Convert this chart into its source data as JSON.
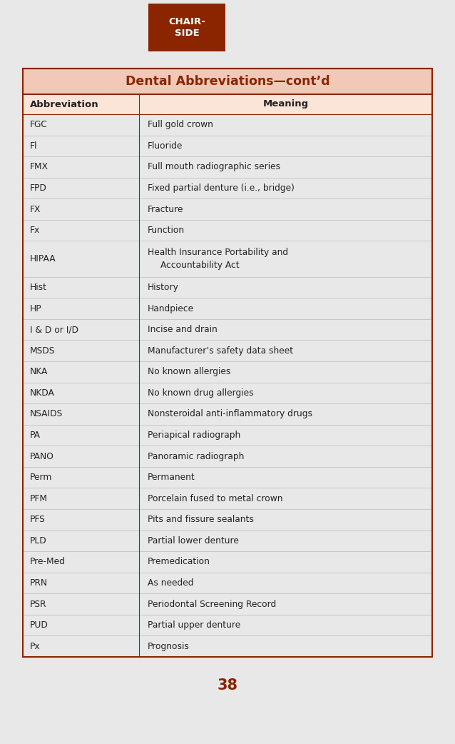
{
  "title": "Dental Abbreviations—cont’d",
  "title_color": "#8B2500",
  "title_bg_color": "#F2C9B8",
  "header_col1": "Abbreviation",
  "header_col2": "Meaning",
  "rows": [
    [
      "FGC",
      "Full gold crown"
    ],
    [
      "Fl",
      "Fluoride"
    ],
    [
      "FMX",
      "Full mouth radiographic series"
    ],
    [
      "FPD",
      "Fixed partial denture (i.e., bridge)"
    ],
    [
      "FX",
      "Fracture"
    ],
    [
      "Fx",
      "Function"
    ],
    [
      "HIPAA",
      "Health Insurance Portability and\n  Accountability Act"
    ],
    [
      "Hist",
      "History"
    ],
    [
      "HP",
      "Handpiece"
    ],
    [
      "I & D or I/D",
      "Incise and drain"
    ],
    [
      "MSDS",
      "Manufacturer’s safety data sheet"
    ],
    [
      "NKA",
      "No known allergies"
    ],
    [
      "NKDA",
      "No known drug allergies"
    ],
    [
      "NSAIDS",
      "Nonsteroidal anti-inflammatory drugs"
    ],
    [
      "PA",
      "Periapical radiograph"
    ],
    [
      "PANO",
      "Panoramic radiograph"
    ],
    [
      "Perm",
      "Permanent"
    ],
    [
      "PFM",
      "Porcelain fused to metal crown"
    ],
    [
      "PFS",
      "Pits and fissure sealants"
    ],
    [
      "PLD",
      "Partial lower denture"
    ],
    [
      "Pre-Med",
      "Premedication"
    ],
    [
      "PRN",
      "As needed"
    ],
    [
      "PSR",
      "Periodontal Screening Record"
    ],
    [
      "PUD",
      "Partial upper denture"
    ],
    [
      "Px",
      "Prognosis"
    ]
  ],
  "border_color": "#8B2500",
  "text_color": "#222222",
  "bg_color": "#E8E8E8",
  "bg_white": "#FFFFFF",
  "page_number": "38",
  "page_num_color": "#8B2500",
  "chairside_bg": "#8B2500",
  "chairside_text": "#FFFFFF",
  "chairside_label": "CHAIR-\nSIDE"
}
